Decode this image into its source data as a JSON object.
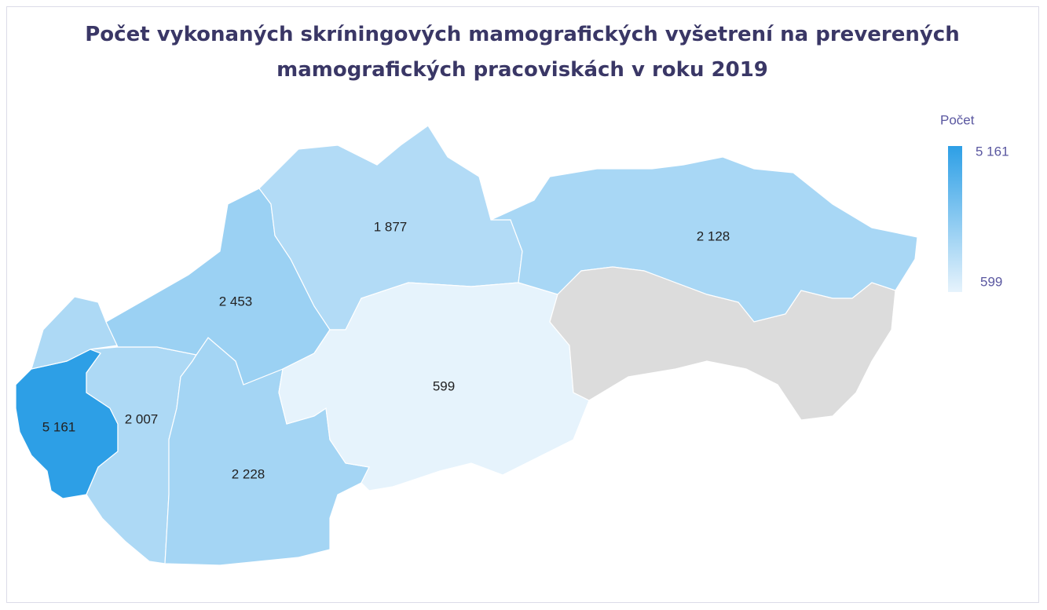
{
  "chart_data": {
    "type": "choropleth",
    "title": "Počet vykonaných skríningových mamografických vyšetrení na preverených mamografických pracoviskách v roku 2019",
    "values": [
      5161,
      2007,
      2228,
      2453,
      1877,
      599,
      2128,
      null
    ],
    "value_labels": [
      "5 161",
      "2 007",
      "2 228",
      "2 453",
      "1 877",
      "599",
      "2 128",
      null
    ],
    "color_range": [
      "#e6f3fc",
      "#2d9fe6"
    ],
    "missing_color": "#dcdcdc",
    "legend": {
      "title": "Počet",
      "ticks": [
        {
          "value": 5161,
          "label": "5 161"
        },
        {
          "value": 599,
          "label": "599"
        }
      ]
    }
  }
}
